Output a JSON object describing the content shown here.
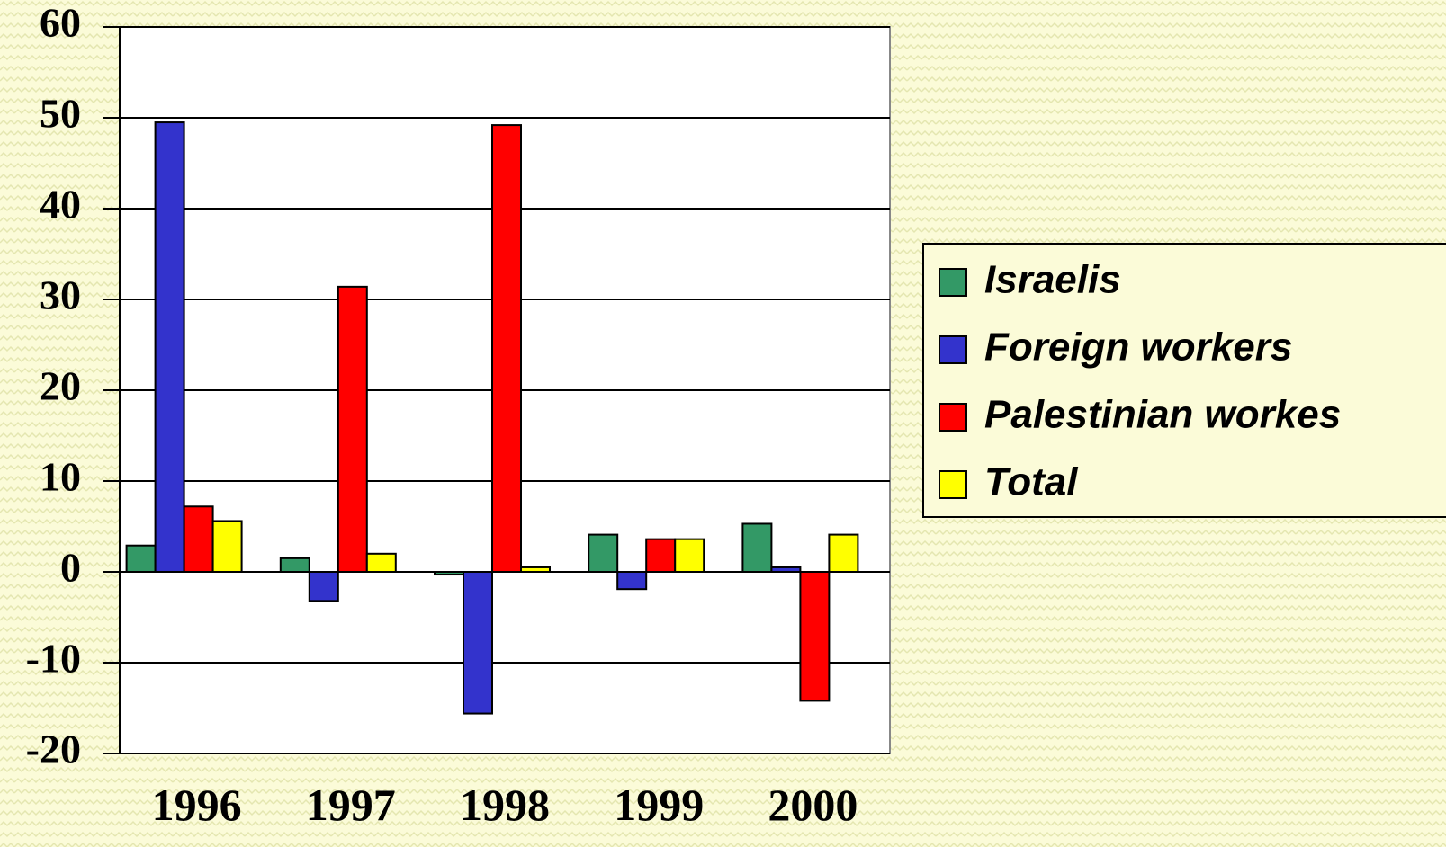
{
  "chart_data": {
    "type": "bar",
    "categories": [
      "1996",
      "1997",
      "1998",
      "1999",
      "2000"
    ],
    "series": [
      {
        "name": "Israelis",
        "color": "#339966",
        "values": [
          2.9,
          1.5,
          -0.3,
          4.1,
          5.3
        ]
      },
      {
        "name": "Foreign workers",
        "color": "#3333cc",
        "values": [
          49.5,
          -3.2,
          -15.6,
          -1.9,
          0.5
        ]
      },
      {
        "name": "Palestinian workes",
        "color": "#ff0000",
        "values": [
          7.2,
          31.4,
          49.2,
          3.6,
          -14.2
        ]
      },
      {
        "name": "Total",
        "color": "#ffff00",
        "values": [
          5.6,
          2.0,
          0.5,
          3.6,
          4.1
        ]
      }
    ],
    "ylim": [
      -20,
      60
    ],
    "yticks": [
      -20,
      -10,
      0,
      10,
      20,
      30,
      40,
      50,
      60
    ],
    "grid": true,
    "legend_position": "right"
  }
}
